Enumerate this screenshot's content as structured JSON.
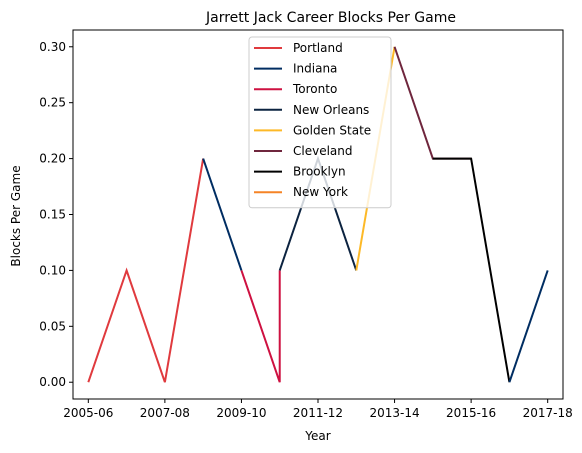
{
  "chart_data": {
    "type": "line",
    "title": "Jarrett Jack Career Blocks Per Game",
    "xlabel": "Year",
    "ylabel": "Blocks Per Game",
    "x_tick_labels": [
      "2005-06",
      "2007-08",
      "2009-10",
      "2011-12",
      "2013-14",
      "2015-16",
      "2017-18"
    ],
    "y_ticks": [
      0.0,
      0.05,
      0.1,
      0.15,
      0.2,
      0.25,
      0.3
    ],
    "y_tick_labels": [
      "0.00",
      "0.05",
      "0.10",
      "0.15",
      "0.20",
      "0.25",
      "0.30"
    ],
    "xlim": [
      2004.6,
      2017.4
    ],
    "ylim": [
      -0.015,
      0.315
    ],
    "grid": false,
    "legend_position": "upper-center",
    "series": [
      {
        "name": "Portland",
        "color": "#E03A3E",
        "points": [
          [
            2005,
            0.0
          ],
          [
            2006,
            0.1
          ],
          [
            2007,
            0.0
          ],
          [
            2008,
            0.2
          ]
        ]
      },
      {
        "name": "Indiana",
        "color": "#002D62",
        "points": [
          [
            2008,
            0.2
          ],
          [
            2009,
            0.1
          ]
        ]
      },
      {
        "name": "Toronto",
        "color": "#CE1141",
        "points": [
          [
            2009,
            0.1
          ],
          [
            2010,
            0.0
          ],
          [
            2010,
            0.1
          ]
        ]
      },
      {
        "name": "New Orleans",
        "color": "#0C2340",
        "points": [
          [
            2010,
            0.1
          ],
          [
            2011,
            0.2
          ],
          [
            2012,
            0.1
          ]
        ]
      },
      {
        "name": "Golden State",
        "color": "#FDB927",
        "points": [
          [
            2012,
            0.1
          ],
          [
            2013,
            0.3
          ]
        ]
      },
      {
        "name": "Cleveland",
        "color": "#6F263D",
        "points": [
          [
            2013,
            0.3
          ],
          [
            2014,
            0.2
          ],
          [
            2015,
            0.2
          ]
        ]
      },
      {
        "name": "Brooklyn",
        "color": "#000000",
        "points": [
          [
            2014,
            0.2
          ],
          [
            2015,
            0.2
          ],
          [
            2016,
            0.0
          ]
        ]
      },
      {
        "name": "New York",
        "color": "#F58426",
        "points": []
      },
      {
        "name": "",
        "color": "#002D62",
        "points": [
          [
            2016,
            0.0
          ],
          [
            2017,
            0.1
          ]
        ]
      }
    ]
  }
}
